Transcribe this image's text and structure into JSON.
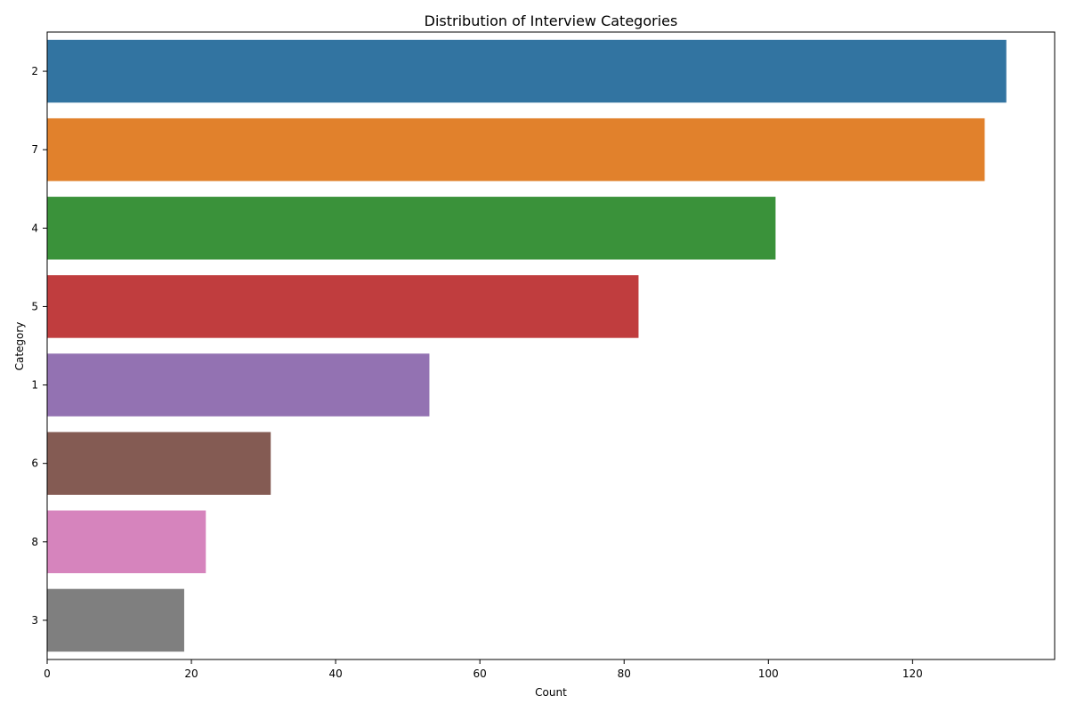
{
  "chart_data": {
    "type": "bar",
    "orientation": "horizontal",
    "title": "Distribution of Interview Categories",
    "xlabel": "Count",
    "ylabel": "Category",
    "categories": [
      "2",
      "7",
      "4",
      "5",
      "1",
      "6",
      "8",
      "3"
    ],
    "values": [
      133,
      130,
      101,
      82,
      53,
      31,
      22,
      19
    ],
    "colors": [
      "#3274a1",
      "#e1812c",
      "#3a923a",
      "#c03d3e",
      "#9372b2",
      "#845b53",
      "#d684bd",
      "#7f7f7f"
    ],
    "xticks": [
      0,
      20,
      40,
      60,
      80,
      100,
      120
    ],
    "xlim": [
      0,
      139.7
    ],
    "grid": false,
    "legend": "none"
  }
}
